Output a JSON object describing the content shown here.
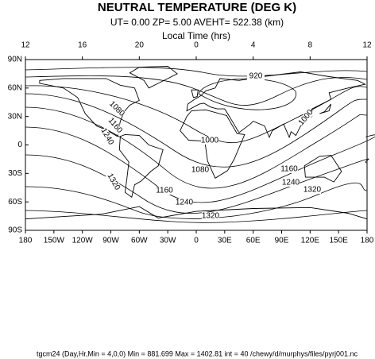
{
  "title": "NEUTRAL TEMPERATURE (DEG K)",
  "subtitle": "UT=  0.00 ZP=  5.00 AVEHT= 522.38 (km)",
  "top_axis": {
    "label": "Local Time (hrs)",
    "ticks": [
      "12",
      "16",
      "20",
      "0",
      "4",
      "8",
      "12"
    ]
  },
  "left_ticks": [
    "90N",
    "60N",
    "30N",
    "0",
    "30S",
    "60S",
    "90S"
  ],
  "bottom_ticks": [
    "180",
    "150W",
    "120W",
    "90W",
    "60W",
    "30W",
    "0",
    "30E",
    "60E",
    "90E",
    "120E",
    "150E",
    "180"
  ],
  "contour_labels": [
    "920",
    "1000",
    "1000",
    "1080",
    "1160",
    "1160",
    "1240",
    "1240",
    "1320",
    "1320",
    "1320",
    "1240",
    "1160",
    "1080"
  ],
  "footer": "tgcm24  (Day,Hr,Min = 4,0,0) Min = 881.699  Max  = 1402.81  int = 40 /chewy/d/murphys/files/pyrj001.nc"
}
